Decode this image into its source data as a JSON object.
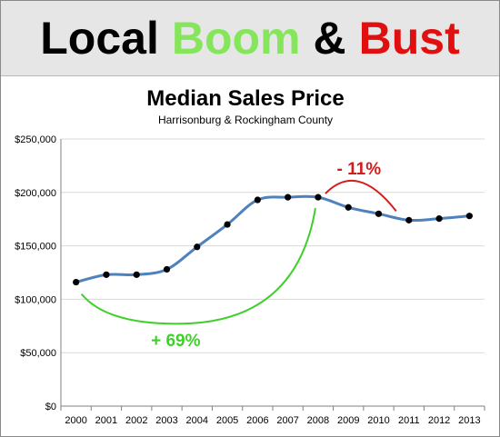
{
  "banner": {
    "word1": "Local",
    "word2": "Boom",
    "word3": "&",
    "word4": "Bust",
    "colors": {
      "local": "#000000",
      "boom": "#85e65c",
      "amp": "#000000",
      "bust": "#e01010"
    }
  },
  "chart_data": {
    "type": "line",
    "title": "Median Sales Price",
    "subtitle": "Harrisonburg  & Rockingham  County",
    "xlabel": "",
    "ylabel": "",
    "categories": [
      "2000",
      "2001",
      "2002",
      "2003",
      "2004",
      "2005",
      "2006",
      "2007",
      "2008",
      "2009",
      "2010",
      "2011",
      "2012",
      "2013"
    ],
    "values": [
      116000,
      123000,
      123000,
      128000,
      149000,
      170000,
      193000,
      195500,
      195500,
      186000,
      180000,
      174000,
      175500,
      178000
    ],
    "ylim": [
      0,
      250000
    ],
    "yticks": [
      0,
      50000,
      100000,
      150000,
      200000,
      250000
    ],
    "ytick_labels": [
      "$0",
      "$50,000",
      "$100,000",
      "$150,000",
      "$200,000",
      "$250,000"
    ],
    "grid": true,
    "legend": "none",
    "line_color": "#4f81bd",
    "marker_color": "#000000",
    "annotations": [
      {
        "text": "+ 69%",
        "from": "2000",
        "to": "2008",
        "color": "#3fcf2a"
      },
      {
        "text": "- 11%",
        "from": "2008",
        "to": "2011",
        "color": "#d31d1d"
      }
    ]
  }
}
